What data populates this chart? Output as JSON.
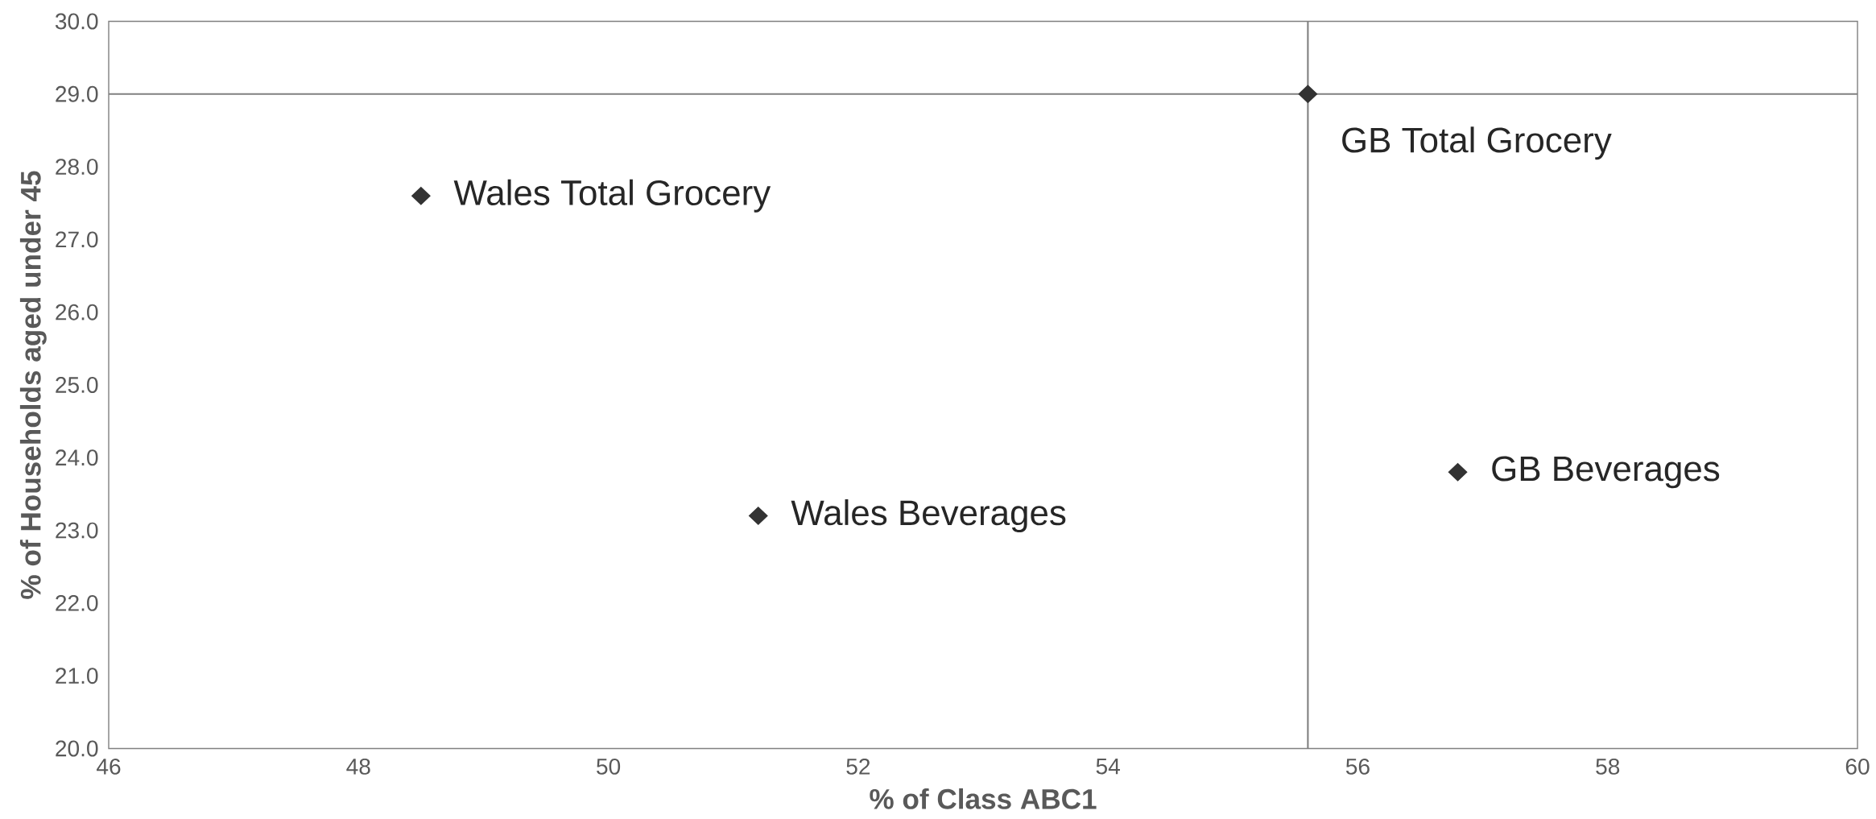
{
  "chart_data": {
    "type": "scatter",
    "xlabel": "% of Class ABC1",
    "ylabel": "% of Households aged under 45",
    "x": [
      48.5,
      51.2,
      55.6,
      56.8
    ],
    "series": [
      {
        "color": "#333333",
        "values": [
          27.6,
          23.2,
          29.0,
          23.8
        ]
      }
    ],
    "marker": "diamond",
    "xlim": [
      46,
      60
    ],
    "xticks": [
      46,
      48,
      50,
      52,
      54,
      56,
      58,
      60
    ],
    "ylim": [
      20,
      30
    ],
    "yticks": [
      {
        "value": 20,
        "label": "20.0"
      },
      {
        "value": 21,
        "label": "21.0"
      },
      {
        "value": 22,
        "label": "22.0"
      },
      {
        "value": 23,
        "label": "23.0"
      },
      {
        "value": 24,
        "label": "24.0"
      },
      {
        "value": 25,
        "label": "25.0"
      },
      {
        "value": 26,
        "label": "26.0"
      },
      {
        "value": 27,
        "label": "27.0"
      },
      {
        "value": 28,
        "label": "28.0"
      },
      {
        "value": 29,
        "label": "29.0"
      },
      {
        "value": 30,
        "label": "30.0"
      }
    ],
    "ref_lines": [
      {
        "axis": "x",
        "value": 55.6,
        "color": "#808080"
      },
      {
        "axis": "y",
        "value": 29.0,
        "color": "#808080"
      }
    ],
    "annotations": [
      {
        "text": "Wales Total Grocery",
        "x": 48.5,
        "y": 27.6
      },
      {
        "text": "Wales Beverages",
        "x": 51.2,
        "y": 23.2
      },
      {
        "text": "GB Total Grocery",
        "x": 55.6,
        "y": 29.0
      },
      {
        "text": "GB Beverages",
        "x": 56.8,
        "y": 23.8
      }
    ],
    "grid": false
  }
}
